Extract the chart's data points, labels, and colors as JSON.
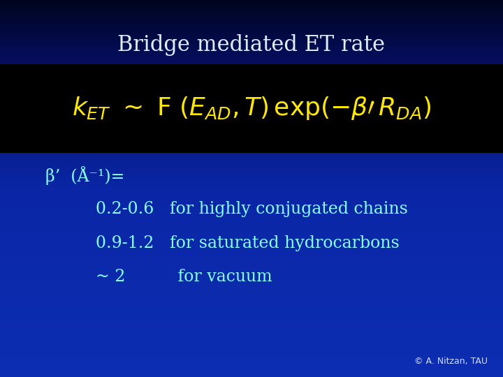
{
  "title": "Bridge mediated ET rate",
  "title_color": "#DDEEFF",
  "title_fontsize": 22,
  "bg_color_top": "#000820",
  "bg_color_mid": "#0033AA",
  "bg_color_bot": "#0044CC",
  "formula_bg": "#000000",
  "formula_color": "#FFE800",
  "formula_fontsize": 26,
  "beta_label": "β’  (Å⁻¹)=",
  "beta_color": "#88FFEE",
  "beta_fontsize": 17,
  "rows": [
    {
      "value": "0.2-0.6",
      "description": "   for highly conjugated chains"
    },
    {
      "value": "0.9-1.2",
      "description": "   for saturated hydrocarbons"
    },
    {
      "value": "~ 2",
      "description": "          for vacuum"
    }
  ],
  "row_value_color": "#88FFEE",
  "row_desc_color": "#88FFEE",
  "row_fontsize": 17,
  "copyright": "© A. Nitzan, TAU",
  "copyright_color": "#CCDDFF",
  "copyright_fontsize": 9
}
